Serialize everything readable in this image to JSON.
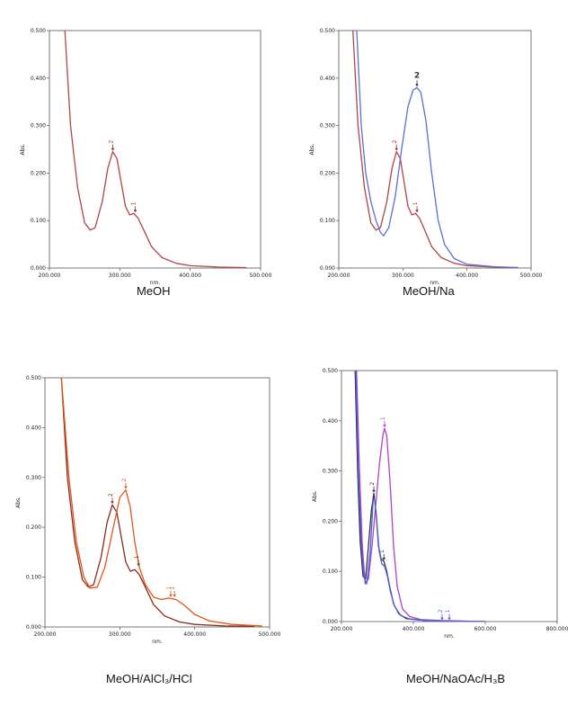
{
  "chart_data": [
    {
      "type": "line",
      "caption": "MeOH",
      "xlabel": "nm.",
      "ylabel": "Abs.",
      "xlim": [
        200,
        500
      ],
      "ylim": [
        0,
        0.5
      ],
      "x_ticks": [
        "200.000",
        "300.000",
        "400.000",
        "500.000"
      ],
      "y_ticks": [
        "0.000",
        "0.100",
        "0.200",
        "0.300",
        "0.400",
        "0.500"
      ],
      "series": [
        {
          "color": "#b0444a",
          "points": [
            [
              222,
              0.5
            ],
            [
              230,
              0.3
            ],
            [
              240,
              0.17
            ],
            [
              250,
              0.095
            ],
            [
              258,
              0.08
            ],
            [
              265,
              0.085
            ],
            [
              275,
              0.14
            ],
            [
              283,
              0.21
            ],
            [
              290,
              0.245
            ],
            [
              296,
              0.23
            ],
            [
              302,
              0.18
            ],
            [
              308,
              0.13
            ],
            [
              314,
              0.112
            ],
            [
              320,
              0.115
            ],
            [
              326,
              0.105
            ],
            [
              334,
              0.08
            ],
            [
              345,
              0.045
            ],
            [
              360,
              0.022
            ],
            [
              380,
              0.01
            ],
            [
              400,
              0.005
            ],
            [
              440,
              0.002
            ],
            [
              480,
              0.001
            ]
          ]
        }
      ],
      "annotations": [
        {
          "label": "2",
          "x": 290,
          "y": 0.245,
          "color": "#9a2a2a"
        },
        {
          "label": "1",
          "x": 322,
          "y": 0.115,
          "color": "#9a2a2a"
        }
      ]
    },
    {
      "type": "line",
      "caption": "MeOH/Na",
      "xlabel": "nm.",
      "ylabel": "Abs.",
      "xlim": [
        200,
        500
      ],
      "ylim": [
        0,
        0.5
      ],
      "x_ticks": [
        "200.000",
        "300.000",
        "400.000",
        "500.000"
      ],
      "y_ticks": [
        "0.000",
        "0.100",
        "0.200",
        "0.300",
        "0.400",
        "0.500"
      ],
      "series": [
        {
          "color": "#b0444a",
          "points": [
            [
              222,
              0.5
            ],
            [
              230,
              0.3
            ],
            [
              240,
              0.17
            ],
            [
              250,
              0.095
            ],
            [
              258,
              0.08
            ],
            [
              265,
              0.085
            ],
            [
              275,
              0.14
            ],
            [
              283,
              0.21
            ],
            [
              290,
              0.245
            ],
            [
              296,
              0.23
            ],
            [
              302,
              0.18
            ],
            [
              308,
              0.13
            ],
            [
              314,
              0.112
            ],
            [
              320,
              0.115
            ],
            [
              326,
              0.105
            ],
            [
              334,
              0.08
            ],
            [
              345,
              0.045
            ],
            [
              360,
              0.022
            ],
            [
              380,
              0.01
            ],
            [
              400,
              0.005
            ],
            [
              440,
              0.002
            ],
            [
              480,
              0.001
            ]
          ]
        },
        {
          "color": "#5b6fd6",
          "points": [
            [
              228,
              0.5
            ],
            [
              235,
              0.3
            ],
            [
              242,
              0.2
            ],
            [
              250,
              0.14
            ],
            [
              258,
              0.1
            ],
            [
              265,
              0.075
            ],
            [
              270,
              0.068
            ],
            [
              278,
              0.085
            ],
            [
              288,
              0.15
            ],
            [
              298,
              0.25
            ],
            [
              308,
              0.34
            ],
            [
              316,
              0.375
            ],
            [
              322,
              0.38
            ],
            [
              328,
              0.37
            ],
            [
              336,
              0.31
            ],
            [
              345,
              0.2
            ],
            [
              355,
              0.1
            ],
            [
              365,
              0.05
            ],
            [
              380,
              0.02
            ],
            [
              400,
              0.008
            ],
            [
              440,
              0.003
            ],
            [
              480,
              0.001
            ]
          ]
        }
      ],
      "annotations": [
        {
          "label": "2",
          "x": 290,
          "y": 0.245,
          "color": "#9a2a2a"
        },
        {
          "label": "1",
          "x": 322,
          "y": 0.115,
          "color": "#9a2a2a"
        },
        {
          "label": "2",
          "x": 322,
          "y": 0.38,
          "color": "#333333",
          "big": true
        }
      ]
    },
    {
      "type": "line",
      "caption": "MeOH/AlCl₃/HCl",
      "xlabel": "nm.",
      "ylabel": "Abs.",
      "xlim": [
        200,
        500
      ],
      "ylim": [
        0,
        0.5
      ],
      "x_ticks": [
        "200.000",
        "300.000",
        "400.000",
        "500.000"
      ],
      "y_ticks": [
        "0.000",
        "0.100",
        "0.200",
        "0.300",
        "0.400",
        "0.500"
      ],
      "series": [
        {
          "color": "#8b2a1a",
          "points": [
            [
              222,
              0.5
            ],
            [
              230,
              0.3
            ],
            [
              240,
              0.17
            ],
            [
              250,
              0.095
            ],
            [
              258,
              0.08
            ],
            [
              265,
              0.085
            ],
            [
              275,
              0.14
            ],
            [
              283,
              0.21
            ],
            [
              290,
              0.245
            ],
            [
              296,
              0.23
            ],
            [
              302,
              0.18
            ],
            [
              308,
              0.13
            ],
            [
              314,
              0.112
            ],
            [
              320,
              0.115
            ],
            [
              326,
              0.105
            ],
            [
              334,
              0.08
            ],
            [
              345,
              0.045
            ],
            [
              360,
              0.022
            ],
            [
              380,
              0.01
            ],
            [
              400,
              0.005
            ],
            [
              440,
              0.002
            ],
            [
              480,
              0.001
            ]
          ]
        },
        {
          "color": "#e0561a",
          "points": [
            [
              222,
              0.5
            ],
            [
              232,
              0.3
            ],
            [
              242,
              0.17
            ],
            [
              252,
              0.1
            ],
            [
              260,
              0.078
            ],
            [
              270,
              0.08
            ],
            [
              280,
              0.12
            ],
            [
              290,
              0.19
            ],
            [
              300,
              0.26
            ],
            [
              308,
              0.275
            ],
            [
              314,
              0.24
            ],
            [
              320,
              0.17
            ],
            [
              326,
              0.12
            ],
            [
              334,
              0.085
            ],
            [
              345,
              0.06
            ],
            [
              355,
              0.055
            ],
            [
              365,
              0.058
            ],
            [
              375,
              0.055
            ],
            [
              385,
              0.045
            ],
            [
              400,
              0.025
            ],
            [
              420,
              0.012
            ],
            [
              450,
              0.005
            ],
            [
              490,
              0.002
            ]
          ]
        }
      ],
      "annotations": [
        {
          "label": "2",
          "x": 290,
          "y": 0.245,
          "color": "#8b2a1a"
        },
        {
          "label": "2",
          "x": 308,
          "y": 0.275,
          "color": "#e0561a"
        },
        {
          "label": "1",
          "x": 325,
          "y": 0.12,
          "color": "#8b2a1a"
        },
        {
          "label": "1",
          "x": 368,
          "y": 0.058,
          "color": "#e0561a"
        },
        {
          "label": "1",
          "x": 373,
          "y": 0.058,
          "color": "#e0561a"
        }
      ]
    },
    {
      "type": "line",
      "caption": "MeOH/NaOAc/H₃B",
      "xlabel": "nm.",
      "ylabel": "Abs.",
      "xlim": [
        200,
        800
      ],
      "ylim": [
        0,
        0.5
      ],
      "x_ticks": [
        "200.000",
        "400.000",
        "600.000",
        "800.000"
      ],
      "y_ticks": [
        "0.000",
        "0.100",
        "0.200",
        "0.300",
        "0.400",
        "0.500"
      ],
      "series": [
        {
          "color": "#333333",
          "points": [
            [
              238,
              0.5
            ],
            [
              245,
              0.3
            ],
            [
              252,
              0.16
            ],
            [
              260,
              0.09
            ],
            [
              267,
              0.085
            ],
            [
              275,
              0.15
            ],
            [
              283,
              0.22
            ],
            [
              290,
              0.255
            ],
            [
              296,
              0.22
            ],
            [
              303,
              0.15
            ],
            [
              310,
              0.125
            ],
            [
              318,
              0.12
            ],
            [
              326,
              0.1
            ],
            [
              334,
              0.07
            ],
            [
              345,
              0.035
            ],
            [
              360,
              0.015
            ],
            [
              380,
              0.006
            ],
            [
              420,
              0.003
            ],
            [
              500,
              0.001
            ],
            [
              600,
              0.0
            ]
          ]
        },
        {
          "color": "#b040c8",
          "points": [
            [
              242,
              0.5
            ],
            [
              250,
              0.3
            ],
            [
              258,
              0.15
            ],
            [
              266,
              0.075
            ],
            [
              275,
              0.085
            ],
            [
              285,
              0.15
            ],
            [
              295,
              0.23
            ],
            [
              305,
              0.31
            ],
            [
              315,
              0.37
            ],
            [
              320,
              0.385
            ],
            [
              326,
              0.37
            ],
            [
              335,
              0.28
            ],
            [
              345,
              0.15
            ],
            [
              355,
              0.07
            ],
            [
              370,
              0.025
            ],
            [
              390,
              0.01
            ],
            [
              420,
              0.004
            ],
            [
              480,
              0.002
            ],
            [
              600,
              0.0
            ]
          ]
        },
        {
          "color": "#4b5fe0",
          "points": [
            [
              240,
              0.5
            ],
            [
              247,
              0.3
            ],
            [
              255,
              0.16
            ],
            [
              262,
              0.09
            ],
            [
              270,
              0.075
            ],
            [
              280,
              0.14
            ],
            [
              288,
              0.24
            ],
            [
              292,
              0.245
            ],
            [
              298,
              0.2
            ],
            [
              305,
              0.14
            ],
            [
              312,
              0.115
            ],
            [
              320,
              0.11
            ],
            [
              328,
              0.09
            ],
            [
              336,
              0.06
            ],
            [
              348,
              0.03
            ],
            [
              365,
              0.012
            ],
            [
              390,
              0.005
            ],
            [
              430,
              0.002
            ],
            [
              480,
              0.001
            ],
            [
              500,
              0.001
            ],
            [
              600,
              0.0
            ]
          ]
        }
      ],
      "annotations": [
        {
          "label": "2",
          "x": 290,
          "y": 0.255,
          "color": "#333333"
        },
        {
          "label": "1",
          "x": 320,
          "y": 0.385,
          "color": "#b040c8"
        },
        {
          "label": "1",
          "x": 318,
          "y": 0.12,
          "color": "#333333"
        },
        {
          "label": "2",
          "x": 480,
          "y": 0.001,
          "color": "#4b5fe0"
        },
        {
          "label": "1",
          "x": 500,
          "y": 0.001,
          "color": "#4b5fe0"
        }
      ]
    }
  ]
}
